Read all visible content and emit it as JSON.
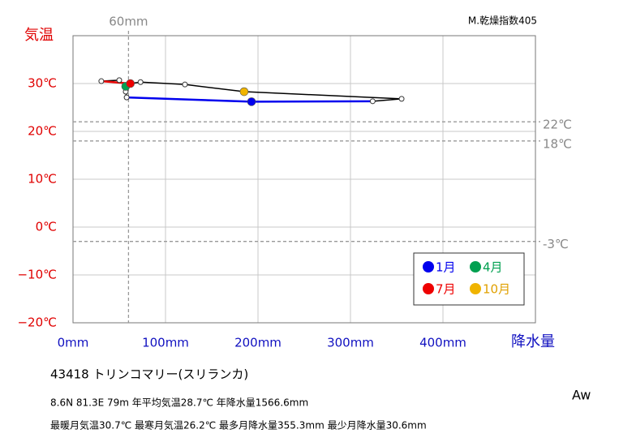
{
  "chart_data": {
    "type": "climograph",
    "corner_label": "M.乾燥指数405",
    "y_label": "気温",
    "x_label": "降水量",
    "y_label_color": "#e00000",
    "x_label_color": "#1010c0",
    "xlim": [
      0,
      500
    ],
    "ylim": [
      -20,
      40
    ],
    "xticks": [
      {
        "value": 0,
        "label": "0mm"
      },
      {
        "value": 100,
        "label": "100mm"
      },
      {
        "value": 200,
        "label": "200mm"
      },
      {
        "value": 300,
        "label": "300mm"
      },
      {
        "value": 400,
        "label": "400mm"
      }
    ],
    "yticks": [
      {
        "value": -20,
        "label": "−20℃"
      },
      {
        "value": -10,
        "label": "−10℃"
      },
      {
        "value": 0,
        "label": "0℃"
      },
      {
        "value": 10,
        "label": "10℃"
      },
      {
        "value": 20,
        "label": "20℃"
      },
      {
        "value": 30,
        "label": "30℃"
      }
    ],
    "grid": true,
    "x_reference_lines": [
      {
        "value": 60,
        "label": "60mm"
      }
    ],
    "y_reference_lines": [
      {
        "value": 22,
        "label": "22℃"
      },
      {
        "value": 18,
        "label": "18℃"
      },
      {
        "value": -3,
        "label": "-3℃"
      }
    ],
    "x": [
      193,
      58,
      57,
      57,
      50,
      30.6,
      62,
      73,
      121,
      185,
      355.3,
      324
    ],
    "y": [
      26.2,
      27.1,
      28.3,
      29.4,
      30.7,
      30.5,
      30.0,
      30.3,
      29.8,
      28.3,
      26.8,
      26.3
    ],
    "line_color": "#000000",
    "highlights": [
      {
        "index": 0,
        "name": "1月",
        "color": "#0000ee",
        "name_color": "#0000ee",
        "color_line": true
      },
      {
        "index": 3,
        "name": "4月",
        "color": "#00a050",
        "name_color": "#00a050",
        "color_line": false
      },
      {
        "index": 6,
        "name": "7月",
        "color": "#ee0000",
        "name_color": "#ee0000",
        "color_line": true
      },
      {
        "index": 9,
        "name": "10月",
        "color": "#f0b400",
        "name_color": "#e0a000",
        "color_line": false
      }
    ],
    "legend": "bottom-right",
    "info": {
      "station": "43418  トリンコマリー(スリランカ)",
      "line1": "8.6N  81.3E 79m  年平均気温28.7℃ 年降水量1566.6mm",
      "line2": "最暖月気温30.7℃ 最寒月気温26.2℃ 最多月降水量355.3mm 最少月降水量30.6mm",
      "climate": "Aw"
    }
  }
}
